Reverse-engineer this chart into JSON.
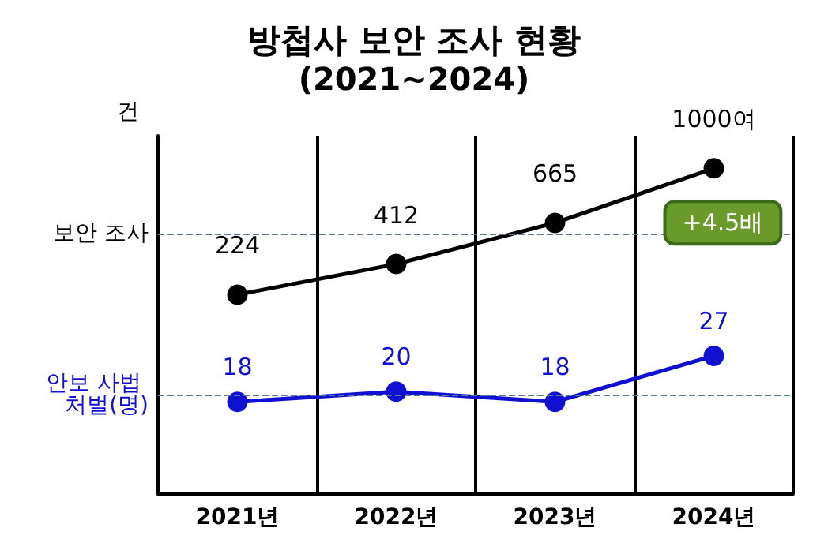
{
  "chart_data": {
    "type": "line",
    "title": "방첩사 보안 조사 현황",
    "subtitle": "(2021~2024)",
    "ylabel": "건",
    "categories": [
      "2021년",
      "2022년",
      "2023년",
      "2024년"
    ],
    "series": [
      {
        "color": "#000000",
        "values": [
          224,
          412,
          665,
          1000
        ],
        "value_labels": [
          "224",
          "412",
          "665",
          "1000여"
        ],
        "axis": "y"
      },
      {
        "color": "#1010d0",
        "values": [
          18,
          20,
          18,
          27
        ],
        "value_labels": [
          "18",
          "20",
          "18",
          "27"
        ],
        "axis": "y2"
      }
    ],
    "ylim": [
      -1000,
      1200
    ],
    "y2lim": [
      0,
      70
    ],
    "tick_labels": "x",
    "ref_lines": [
      {
        "axis": "y",
        "value": 600,
        "label": "보안 조사",
        "color": "#5a7a9a",
        "line_style": "dashed"
      },
      {
        "axis": "y2",
        "value": 19.4,
        "label": "안보 사법 처벌(명)",
        "color": "#5a7a9a",
        "line_style": "dashed"
      }
    ],
    "annotations": [
      {
        "text": "+4.5배",
        "x": "2024년",
        "y": 1000
      }
    ],
    "grid": "x",
    "marker": "circle",
    "line_style": "solid"
  }
}
